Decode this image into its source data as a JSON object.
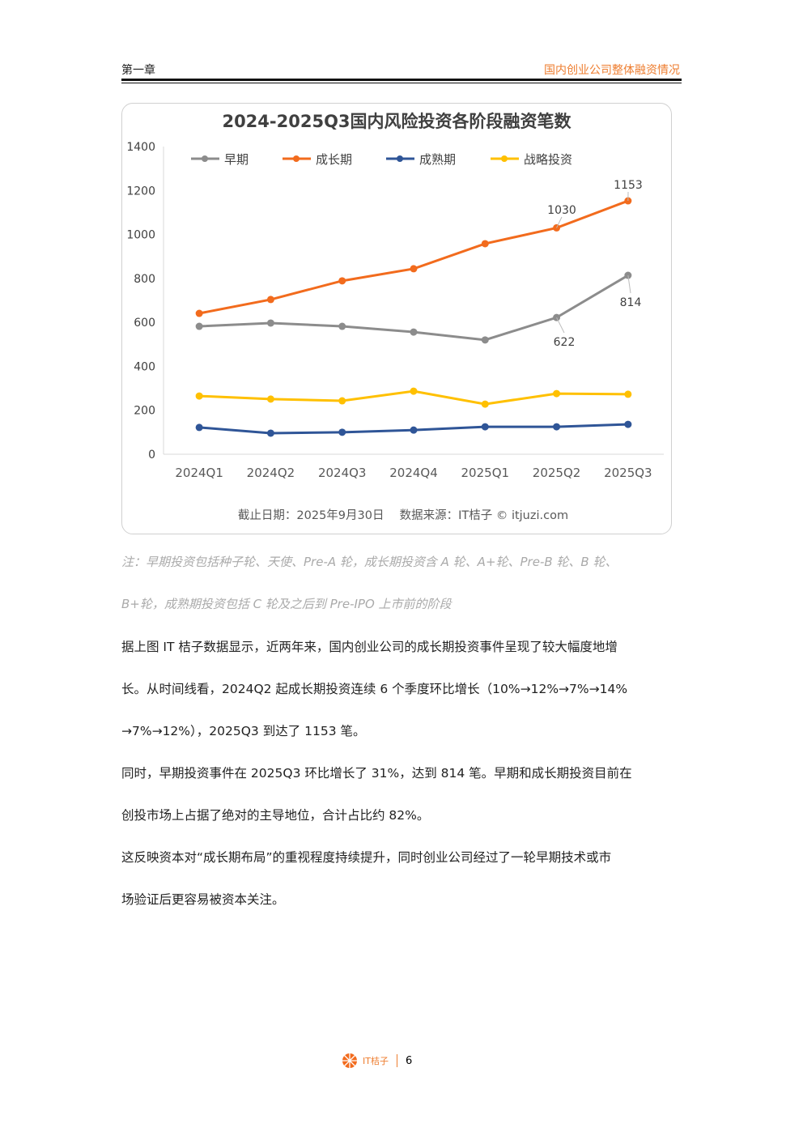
{
  "header": {
    "chapter": "第一章",
    "section": "国内创业公司整体融资情况"
  },
  "chart_data": {
    "type": "line",
    "title": "2024-2025Q3国内风险投资各阶段融资笔数",
    "categories": [
      "2024Q1",
      "2024Q2",
      "2024Q3",
      "2024Q4",
      "2025Q1",
      "2025Q2",
      "2025Q3"
    ],
    "ylim": [
      0,
      1400
    ],
    "yticks": [
      "0",
      "200",
      "400",
      "600",
      "800",
      "1000",
      "1200",
      "1400"
    ],
    "legend_position": "top",
    "series": [
      {
        "name": "早期",
        "color": "#8c8c8c",
        "values": [
          582,
          597,
          582,
          556,
          520,
          622,
          814
        ],
        "labels": {
          "5": "622",
          "6": "814"
        }
      },
      {
        "name": "成长期",
        "color": "#f26b1d",
        "values": [
          641,
          704,
          789,
          844,
          958,
          1030,
          1153
        ],
        "labels": {
          "5": "1030",
          "6": "1153"
        }
      },
      {
        "name": "成熟期",
        "color": "#2f5597",
        "values": [
          122,
          96,
          100,
          110,
          125,
          125,
          136
        ]
      },
      {
        "name": "战略投资",
        "color": "#ffc000",
        "values": [
          265,
          251,
          243,
          287,
          228,
          276,
          273
        ]
      }
    ],
    "source": "截止日期：2025年9月30日　 数据来源：IT桔子 © itjuzi.com"
  },
  "note": [
    "注：早期投资包括种子轮、天使、Pre-A 轮，成长期投资含 A 轮、A+轮、Pre-B 轮、B 轮、",
    "B+轮，成熟期投资包括 C 轮及之后到 Pre-IPO 上市前的阶段"
  ],
  "paragraphs": [
    "据上图 IT 桔子数据显示，近两年来，国内创业公司的成长期投资事件呈现了较大幅度地增",
    "长。从时间线看，2024Q2 起成长期投资连续 6 个季度环比增长（10%→12%→7%→14%",
    "→7%→12%），2025Q3 到达了 1153 笔。",
    "同时，早期投资事件在 2025Q3 环比增长了 31%，达到 814 笔。早期和成长期投资目前在",
    "创投市场上占据了绝对的主导地位，合计占比约 82%。",
    "这反映资本对“成长期布局”的重视程度持续提升，同时创业公司经过了一轮早期技术或市",
    "场验证后更容易被资本关注。"
  ],
  "footer": {
    "logo": "IT桔子",
    "page": "6"
  }
}
